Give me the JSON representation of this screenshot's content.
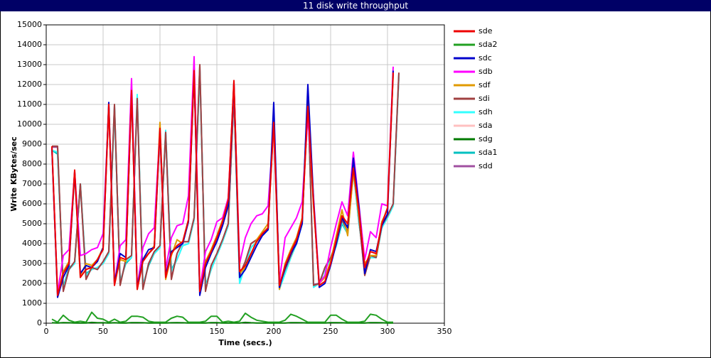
{
  "chart_data": {
    "type": "line",
    "title": "11 disk write throughput",
    "xlabel": "Time (secs.)",
    "ylabel": "Write KBytes/sec",
    "xlim": [
      0,
      350
    ],
    "xticks": [
      0,
      50,
      100,
      150,
      200,
      250,
      300,
      350
    ],
    "ylim": [
      0,
      15000
    ],
    "yticks": [
      0,
      1000,
      2000,
      3000,
      4000,
      5000,
      6000,
      7000,
      8000,
      9000,
      10000,
      11000,
      12000,
      13000,
      14000,
      15000
    ],
    "grid": true,
    "legend": "right",
    "x": [
      5,
      10,
      15,
      20,
      25,
      30,
      35,
      40,
      45,
      50,
      55,
      60,
      65,
      70,
      75,
      80,
      85,
      90,
      95,
      100,
      105,
      110,
      115,
      120,
      125,
      130,
      135,
      140,
      145,
      150,
      155,
      160,
      165,
      170,
      175,
      180,
      185,
      190,
      195,
      200,
      205,
      210,
      215,
      220,
      225,
      230,
      235,
      240,
      245,
      250,
      255,
      260,
      265,
      270,
      275,
      280,
      285,
      290,
      295,
      300,
      305,
      310
    ],
    "series": [
      {
        "name": "sde",
        "color": "#ee0000",
        "values": [
          8900,
          1400,
          2500,
          3000,
          7700,
          2300,
          2700,
          2800,
          3200,
          3700,
          11000,
          1900,
          3300,
          3200,
          11700,
          1700,
          3100,
          3500,
          3800,
          9800,
          2300,
          3500,
          3900,
          4100,
          5200,
          12700,
          1600,
          3000,
          3600,
          4300,
          5100,
          6200,
          12200,
          2600,
          2900,
          3500,
          4100,
          4500,
          4800,
          10100,
          1900,
          2900,
          3600,
          4200,
          5200,
          10900,
          6000,
          1900,
          2100,
          3000,
          4200,
          5400,
          5000,
          7800,
          5600,
          2800,
          3600,
          3500,
          5000,
          5800,
          12600,
          null
        ]
      },
      {
        "name": "sda2",
        "color": "#22a022",
        "values": [
          200,
          50,
          400,
          150,
          50,
          100,
          50,
          550,
          250,
          200,
          50,
          200,
          50,
          100,
          350,
          350,
          300,
          100,
          50,
          50,
          50,
          250,
          350,
          300,
          50,
          50,
          50,
          100,
          350,
          350,
          50,
          100,
          50,
          100,
          500,
          300,
          150,
          100,
          50,
          50,
          50,
          150,
          450,
          350,
          200,
          50,
          50,
          50,
          50,
          400,
          400,
          200,
          50,
          50,
          50,
          100,
          450,
          400,
          200,
          50,
          50,
          null
        ]
      },
      {
        "name": "sdc",
        "color": "#0000cc",
        "values": [
          8800,
          1300,
          2300,
          2900,
          7600,
          2500,
          2900,
          2800,
          3100,
          3800,
          11100,
          2000,
          3500,
          3300,
          11600,
          1800,
          3200,
          3700,
          3800,
          9700,
          2400,
          3600,
          3800,
          4000,
          5100,
          12600,
          1400,
          2800,
          3500,
          4100,
          4900,
          5900,
          12100,
          2300,
          2700,
          3300,
          3900,
          4400,
          4700,
          11100,
          1800,
          2800,
          3500,
          4000,
          5000,
          12000,
          6200,
          1800,
          2000,
          2900,
          4000,
          5300,
          4800,
          8300,
          5800,
          2500,
          3700,
          3600,
          4900,
          5500,
          12700,
          null
        ]
      },
      {
        "name": "sdb",
        "color": "#ff00ff",
        "values": [
          8800,
          1500,
          3400,
          3700,
          7600,
          3400,
          3500,
          3700,
          3800,
          4500,
          10900,
          2000,
          3900,
          4200,
          12300,
          1800,
          3800,
          4500,
          4800,
          9700,
          2700,
          4300,
          4900,
          5000,
          6400,
          13400,
          1700,
          3600,
          4200,
          5100,
          5300,
          6300,
          12000,
          3000,
          4300,
          5000,
          5400,
          5500,
          5900,
          9900,
          2100,
          4300,
          4800,
          5300,
          6100,
          10400,
          6300,
          2000,
          2400,
          3800,
          5000,
          6100,
          5400,
          8600,
          5900,
          3200,
          4600,
          4300,
          6000,
          5900,
          12900,
          null
        ]
      },
      {
        "name": "sdf",
        "color": "#e09a00",
        "values": [
          8800,
          1500,
          2600,
          3100,
          7500,
          2400,
          3000,
          2900,
          3200,
          3800,
          10900,
          2000,
          3200,
          3100,
          11600,
          1700,
          3200,
          3500,
          3900,
          10100,
          2200,
          3400,
          4200,
          4000,
          5100,
          12600,
          1600,
          3100,
          3700,
          4400,
          5200,
          6100,
          12000,
          2500,
          2800,
          3400,
          4200,
          4600,
          5000,
          10000,
          1700,
          3000,
          3700,
          4300,
          5300,
          10800,
          5900,
          2000,
          2300,
          3100,
          4400,
          5700,
          4400,
          7600,
          5400,
          3000,
          3400,
          3400,
          5100,
          5700,
          12500,
          null
        ]
      },
      {
        "name": "sdi",
        "color": "#a04040",
        "values": [
          8900,
          8900,
          1600,
          2700,
          3100,
          7000,
          2200,
          2800,
          2700,
          3100,
          3600,
          11000,
          1900,
          3200,
          3400,
          11300,
          1700,
          3000,
          3600,
          3900,
          9600,
          2200,
          3500,
          4100,
          4100,
          5300,
          13000,
          1600,
          2900,
          3500,
          4200,
          5000,
          11500,
          2400,
          3100,
          4000,
          4200,
          4500,
          4700,
          10600,
          1900,
          2700,
          3400,
          4100,
          5100,
          11500,
          1900,
          2000,
          2800,
          3300,
          4000,
          5200,
          4600,
          7900,
          5200,
          2400,
          3400,
          3300,
          4900,
          5400,
          6000,
          12600
        ]
      },
      {
        "name": "sdh",
        "color": "#33ffff",
        "values": [
          8700,
          8600,
          1700,
          2700,
          3000,
          7000,
          2400,
          2700,
          2800,
          3000,
          3500,
          10900,
          2000,
          3100,
          3300,
          11500,
          1800,
          3000,
          3500,
          3800,
          9700,
          2600,
          3200,
          3900,
          4000,
          5200,
          12800,
          1800,
          2700,
          3400,
          4100,
          4900,
          11600,
          2000,
          2900,
          3800,
          4100,
          4400,
          4700,
          10500,
          1700,
          2500,
          3300,
          4000,
          5000,
          11600,
          1800,
          2000,
          2700,
          3200,
          3900,
          5100,
          4500,
          7700,
          5000,
          2900,
          3300,
          3300,
          4800,
          5300,
          5900,
          12500
        ]
      },
      {
        "name": "sda",
        "color": "#ffc0c0",
        "values": [
          8850,
          1450,
          2550,
          3000,
          7650,
          2350,
          2750,
          2850,
          3200,
          3700,
          10950,
          1950,
          3300,
          3200,
          11650,
          1750,
          3100,
          3500,
          3800,
          9750,
          2300,
          3500,
          3900,
          4100,
          5200,
          12650,
          1650,
          3000,
          3600,
          4300,
          5100,
          6200,
          12150,
          2600,
          2900,
          3500,
          4100,
          4500,
          4800,
          10050,
          1900,
          2900,
          3600,
          4200,
          5200,
          10850,
          6000,
          1900,
          2100,
          3000,
          4200,
          5400,
          5000,
          7750,
          5600,
          2800,
          3600,
          3500,
          5000,
          5800,
          12550,
          null
        ]
      },
      {
        "name": "sdg",
        "color": "#007a00",
        "values": [
          20,
          10,
          30,
          20,
          10,
          10,
          10,
          40,
          20,
          20,
          10,
          20,
          10,
          10,
          30,
          30,
          20,
          10,
          10,
          10,
          10,
          20,
          30,
          20,
          10,
          10,
          10,
          10,
          30,
          30,
          10,
          10,
          10,
          10,
          40,
          20,
          10,
          10,
          10,
          10,
          10,
          10,
          30,
          30,
          20,
          10,
          10,
          10,
          10,
          30,
          30,
          20,
          10,
          10,
          10,
          10,
          30,
          30,
          20,
          10,
          10,
          null
        ]
      },
      {
        "name": "sda1",
        "color": "#00c0c0",
        "values": [
          8700,
          8500,
          1800,
          2800,
          3000,
          7000,
          2500,
          2700,
          2800,
          3000,
          3500,
          10800,
          2100,
          3000,
          3300,
          11400,
          1900,
          2900,
          3500,
          3800,
          9600,
          2700,
          3200,
          3900,
          4000,
          5200,
          12700,
          1900,
          2700,
          3400,
          4100,
          4900,
          11500,
          2100,
          2900,
          3800,
          4100,
          4400,
          4700,
          10400,
          1800,
          2500,
          3300,
          4000,
          5000,
          11500,
          1900,
          2000,
          2700,
          3200,
          3900,
          5000,
          4500,
          7600,
          5000,
          2900,
          3300,
          3300,
          4800,
          5300,
          5900,
          12400
        ]
      },
      {
        "name": "sdd",
        "color": "#a050a0",
        "values": [
          8850,
          8850,
          1650,
          2700,
          3100,
          6950,
          2250,
          2800,
          2700,
          3100,
          3600,
          10950,
          1950,
          3200,
          3400,
          11250,
          1750,
          3000,
          3600,
          3900,
          9550,
          2250,
          3500,
          4100,
          4100,
          5300,
          12950,
          1650,
          2900,
          3500,
          4200,
          5000,
          11450,
          2450,
          3100,
          4000,
          4200,
          4500,
          4700,
          10550,
          1950,
          2700,
          3400,
          4100,
          5100,
          11450,
          1950,
          2000,
          2800,
          3300,
          4000,
          5200,
          4600,
          7850,
          5200,
          2450,
          3400,
          3300,
          4900,
          5400,
          6000,
          12550
        ]
      }
    ]
  }
}
